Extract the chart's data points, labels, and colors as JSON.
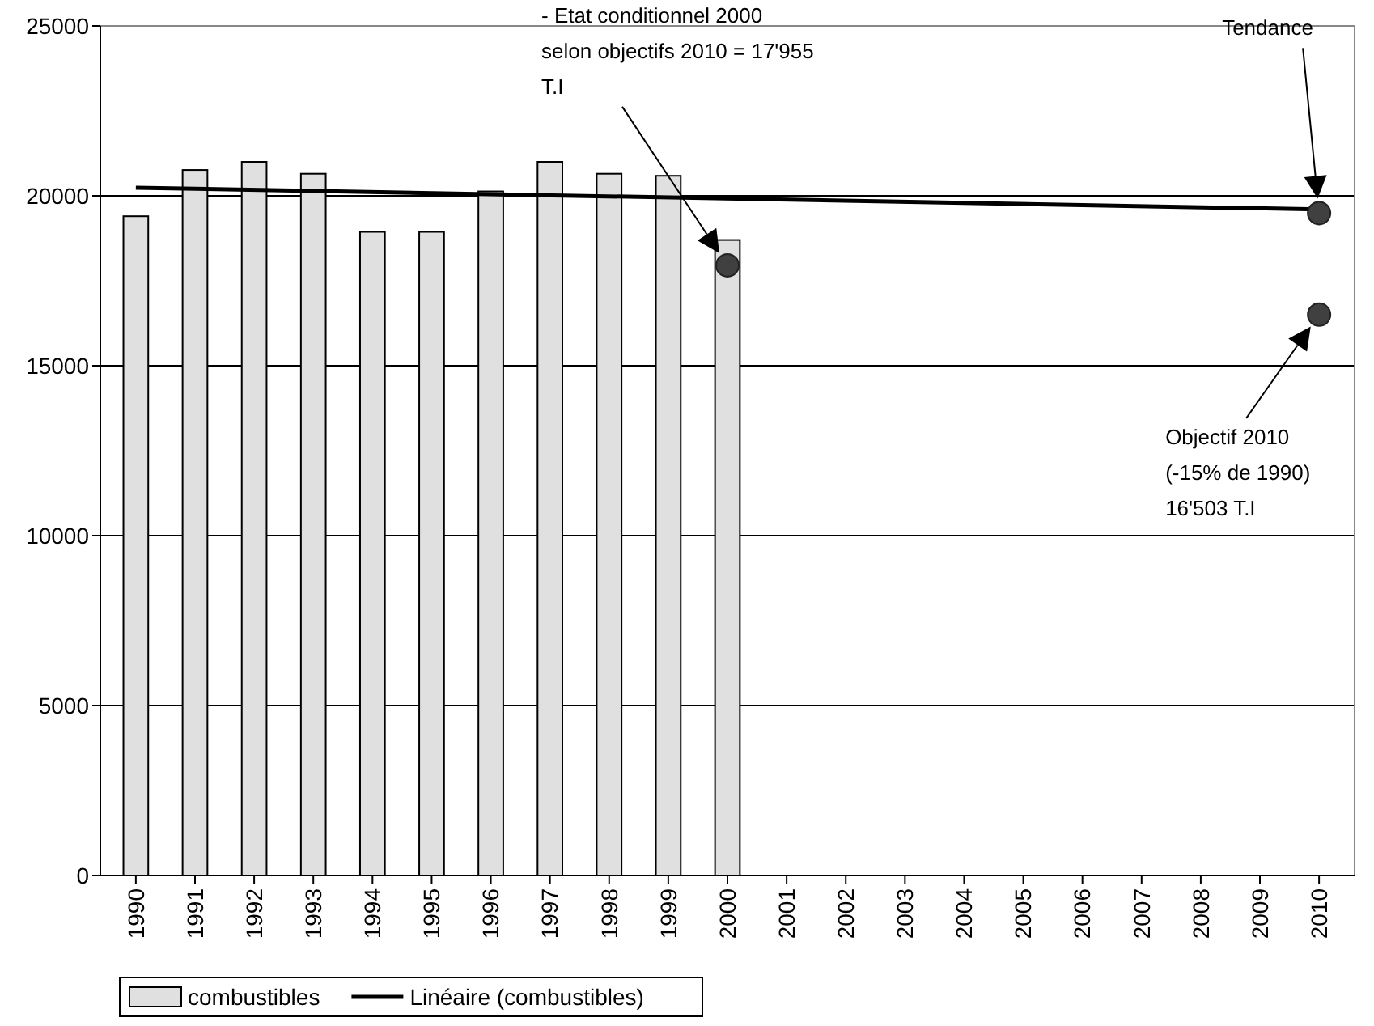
{
  "chart_data": {
    "type": "bar",
    "xlim": [
      1989.4,
      2010.6
    ],
    "xticks": [
      1990,
      1991,
      1992,
      1993,
      1994,
      1995,
      1996,
      1997,
      1998,
      1999,
      2000,
      2001,
      2002,
      2003,
      2004,
      2005,
      2006,
      2007,
      2008,
      2009,
      2010
    ],
    "series": [
      {
        "name": "combustibles",
        "color": "#e0e0e0",
        "x": [
          1990,
          1991,
          1992,
          1993,
          1994,
          1995,
          1996,
          1997,
          1998,
          1999,
          2000
        ],
        "values": [
          19400,
          20760,
          21000,
          20650,
          18940,
          18940,
          20130,
          21000,
          20650,
          20590,
          18700
        ]
      },
      {
        "name": "Linéaire (combustibles)",
        "type": "line",
        "color": "#000000",
        "x": [
          1990,
          2010
        ],
        "values": [
          20240,
          19600
        ]
      },
      {
        "type": "scatter",
        "color": "#404040",
        "marker": "circle",
        "x": [
          2000,
          2010,
          2010
        ],
        "values": [
          17955,
          19490,
          16503
        ]
      }
    ],
    "ylim": [
      0,
      25000
    ],
    "yticks": [
      0,
      5000,
      10000,
      15000,
      20000,
      25000
    ],
    "grid": "y",
    "legend": "bottom left",
    "annotations": [
      "- Etat conditionnel 2000 selon objectifs 2010 = 17'955 T.I",
      "Tendance",
      "Objectif 2010 (-15% de 1990) 16'503 T.I"
    ]
  }
}
